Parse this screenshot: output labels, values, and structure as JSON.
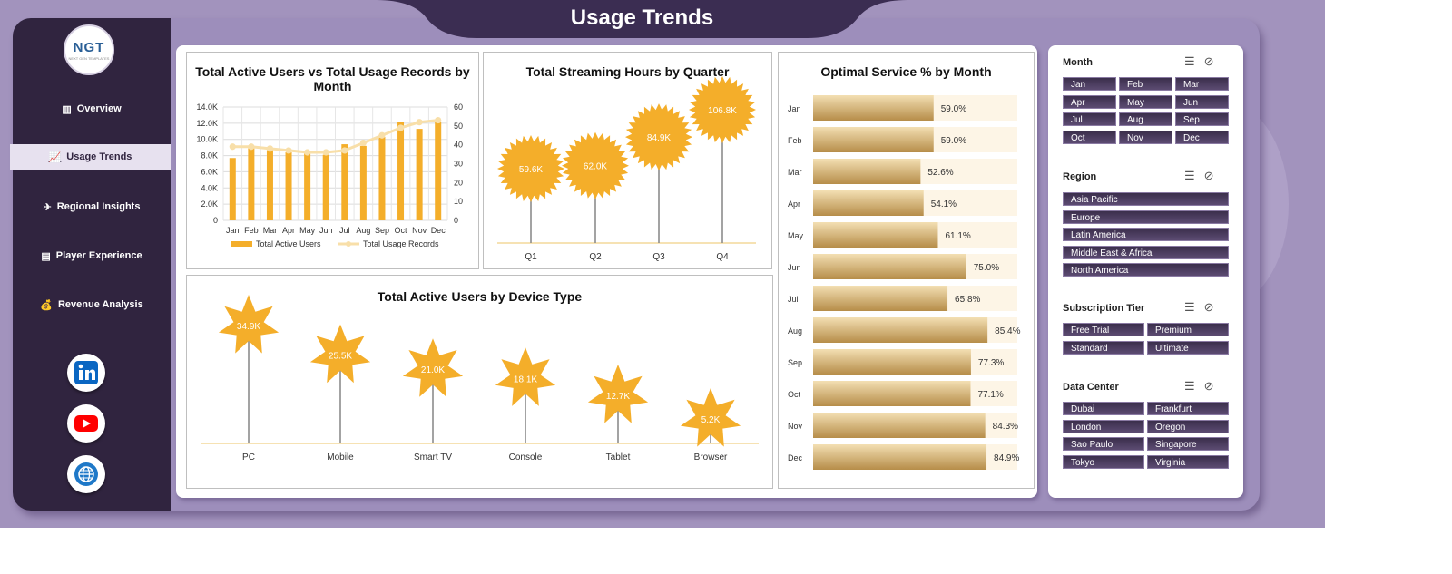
{
  "header": {
    "title": "Usage Trends"
  },
  "logo": {
    "text": "NGT",
    "subtext": "NEXT GEN TEMPLATES"
  },
  "nav": [
    {
      "label": "Overview",
      "icon": "bar-chart-icon",
      "active": false
    },
    {
      "label": "Usage Trends",
      "icon": "line-chart-icon",
      "active": true
    },
    {
      "label": "Regional Insights",
      "icon": "world-map-icon",
      "active": false
    },
    {
      "label": "Player Experience",
      "icon": "clipboard-icon",
      "active": false
    },
    {
      "label": "Revenue Analysis",
      "icon": "money-bag-icon",
      "active": false
    }
  ],
  "social": [
    {
      "name": "linkedin-icon",
      "color": "#0a66c2"
    },
    {
      "name": "youtube-icon",
      "color": "#ff0000"
    },
    {
      "name": "website-globe-icon",
      "color": "#1e78c8"
    }
  ],
  "colors": {
    "accent": "#f4ae2a",
    "sidebar": "#30243f",
    "line": "#f8dfa9"
  },
  "filters": {
    "month": {
      "title": "Month",
      "items": [
        "Jan",
        "Feb",
        "Mar",
        "Apr",
        "May",
        "Jun",
        "Jul",
        "Aug",
        "Sep",
        "Oct",
        "Nov",
        "Dec"
      ]
    },
    "region": {
      "title": "Region",
      "items": [
        "Asia Pacific",
        "Europe",
        "Latin America",
        "Middle East & Africa",
        "North America"
      ]
    },
    "tier": {
      "title": "Subscription Tier",
      "items": [
        "Free Trial",
        "Premium",
        "Standard",
        "Ultimate"
      ]
    },
    "datacenter": {
      "title": "Data Center",
      "items": [
        "Dubai",
        "Frankfurt",
        "London",
        "Oregon",
        "Sao Paulo",
        "Singapore",
        "Tokyo",
        "Virginia"
      ]
    }
  },
  "chart_data": [
    {
      "type": "bar+line",
      "title": "Total Active Users vs Total Usage Records by Month",
      "categories": [
        "Jan",
        "Feb",
        "Mar",
        "Apr",
        "May",
        "Jun",
        "Jul",
        "Aug",
        "Sep",
        "Oct",
        "Nov",
        "Dec"
      ],
      "series": [
        {
          "name": "Total Active Users",
          "type": "bar",
          "axis": "left",
          "values": [
            7700,
            8900,
            8700,
            8400,
            8300,
            8100,
            9400,
            9200,
            10300,
            12200,
            11300,
            12100
          ]
        },
        {
          "name": "Total Usage Records",
          "type": "line",
          "axis": "right",
          "values": [
            39,
            39,
            38,
            37,
            36,
            36,
            37,
            41,
            45,
            49,
            52,
            53
          ]
        }
      ],
      "y_left": {
        "ticks": [
          "0",
          "2.0K",
          "4.0K",
          "6.0K",
          "8.0K",
          "10.0K",
          "12.0K",
          "14.0K"
        ],
        "min": 0,
        "max": 14000
      },
      "y_right": {
        "ticks": [
          "0",
          "10",
          "20",
          "30",
          "40",
          "50",
          "60"
        ],
        "min": 0,
        "max": 60
      },
      "legend": "bottom"
    },
    {
      "type": "lollipop",
      "title": "Total Streaming Hours by Quarter",
      "categories": [
        "Q1",
        "Q2",
        "Q3",
        "Q4"
      ],
      "values": [
        59600,
        62000,
        84900,
        106800
      ],
      "labels": [
        "59.6K",
        "62.0K",
        "84.9K",
        "106.8K"
      ]
    },
    {
      "type": "bar",
      "orientation": "horizontal",
      "title": "Optimal Service % by Month",
      "categories": [
        "Jan",
        "Feb",
        "Mar",
        "Apr",
        "May",
        "Jun",
        "Jul",
        "Aug",
        "Sep",
        "Oct",
        "Nov",
        "Dec"
      ],
      "values": [
        59.0,
        59.0,
        52.6,
        54.1,
        61.1,
        75.0,
        65.8,
        85.4,
        77.3,
        77.1,
        84.3,
        84.9
      ],
      "labels": [
        "59.0%",
        "59.0%",
        "52.6%",
        "54.1%",
        "61.1%",
        "75.0%",
        "65.8%",
        "85.4%",
        "77.3%",
        "77.1%",
        "84.3%",
        "84.9%"
      ],
      "xlim": [
        0,
        100
      ]
    },
    {
      "type": "lollipop",
      "title": "Total Active Users by Device Type",
      "categories": [
        "PC",
        "Mobile",
        "Smart TV",
        "Console",
        "Tablet",
        "Browser"
      ],
      "values": [
        34900,
        25500,
        21000,
        18100,
        12700,
        5200
      ],
      "labels": [
        "34.9K",
        "25.5K",
        "21.0K",
        "18.1K",
        "12.7K",
        "5.2K"
      ]
    }
  ]
}
